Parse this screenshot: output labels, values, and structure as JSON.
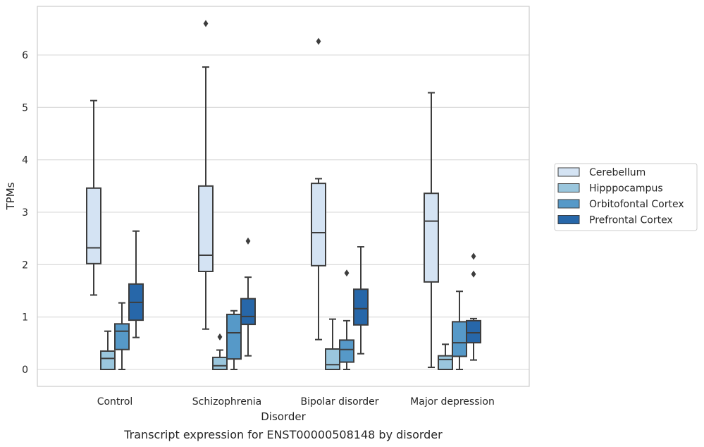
{
  "caption": "Transcript expression for ENST00000508148 by disorder",
  "chart_data": {
    "type": "box",
    "title": "",
    "xlabel": "Disorder",
    "ylabel": "TPMs",
    "ylim": [
      -0.32,
      6.9
    ],
    "yticks": [
      0,
      1,
      2,
      3,
      4,
      5,
      6
    ],
    "grid": "horizontal",
    "legend_position": "right",
    "categories": [
      "Control",
      "Schizophrenia",
      "Bipolar disorder",
      "Major depression"
    ],
    "series": [
      {
        "name": "Cerebellum",
        "color": "#d4e3f3",
        "boxes": [
          {
            "whisker_low": 1.42,
            "q1": 2.02,
            "median": 2.32,
            "q3": 3.46,
            "whisker_high": 5.13,
            "outliers": []
          },
          {
            "whisker_low": 0.77,
            "q1": 1.87,
            "median": 2.18,
            "q3": 3.5,
            "whisker_high": 5.77,
            "outliers": [
              6.6
            ]
          },
          {
            "whisker_low": 0.57,
            "q1": 1.98,
            "median": 2.61,
            "q3": 3.55,
            "whisker_high": 3.64,
            "outliers": [
              6.26
            ]
          },
          {
            "whisker_low": 0.04,
            "q1": 1.67,
            "median": 2.83,
            "q3": 3.36,
            "whisker_high": 5.28,
            "outliers": []
          }
        ]
      },
      {
        "name": "Hipppocampus",
        "color": "#9ac6dd",
        "boxes": [
          {
            "whisker_low": 0.0,
            "q1": 0.0,
            "median": 0.21,
            "q3": 0.35,
            "whisker_high": 0.73,
            "outliers": []
          },
          {
            "whisker_low": 0.0,
            "q1": 0.0,
            "median": 0.07,
            "q3": 0.23,
            "whisker_high": 0.37,
            "outliers": [
              0.62
            ]
          },
          {
            "whisker_low": 0.0,
            "q1": 0.0,
            "median": 0.09,
            "q3": 0.39,
            "whisker_high": 0.96,
            "outliers": []
          },
          {
            "whisker_low": 0.0,
            "q1": 0.0,
            "median": 0.19,
            "q3": 0.26,
            "whisker_high": 0.48,
            "outliers": []
          }
        ]
      },
      {
        "name": "Orbitofontal Cortex",
        "color": "#5699c8",
        "boxes": [
          {
            "whisker_low": 0.0,
            "q1": 0.38,
            "median": 0.73,
            "q3": 0.87,
            "whisker_high": 1.27,
            "outliers": []
          },
          {
            "whisker_low": 0.0,
            "q1": 0.2,
            "median": 0.7,
            "q3": 1.05,
            "whisker_high": 1.12,
            "outliers": []
          },
          {
            "whisker_low": 0.0,
            "q1": 0.14,
            "median": 0.38,
            "q3": 0.56,
            "whisker_high": 0.93,
            "outliers": [
              1.84
            ]
          },
          {
            "whisker_low": 0.0,
            "q1": 0.25,
            "median": 0.51,
            "q3": 0.91,
            "whisker_high": 1.49,
            "outliers": []
          }
        ]
      },
      {
        "name": "Prefrontal Cortex",
        "color": "#2767a9",
        "boxes": [
          {
            "whisker_low": 0.61,
            "q1": 0.94,
            "median": 1.28,
            "q3": 1.63,
            "whisker_high": 2.64,
            "outliers": []
          },
          {
            "whisker_low": 0.26,
            "q1": 0.86,
            "median": 1.01,
            "q3": 1.35,
            "whisker_high": 1.76,
            "outliers": [
              2.45
            ]
          },
          {
            "whisker_low": 0.3,
            "q1": 0.85,
            "median": 1.16,
            "q3": 1.53,
            "whisker_high": 2.34,
            "outliers": []
          },
          {
            "whisker_low": 0.18,
            "q1": 0.51,
            "median": 0.7,
            "q3": 0.93,
            "whisker_high": 0.97,
            "outliers": [
              1.82,
              2.16
            ]
          }
        ]
      }
    ]
  }
}
